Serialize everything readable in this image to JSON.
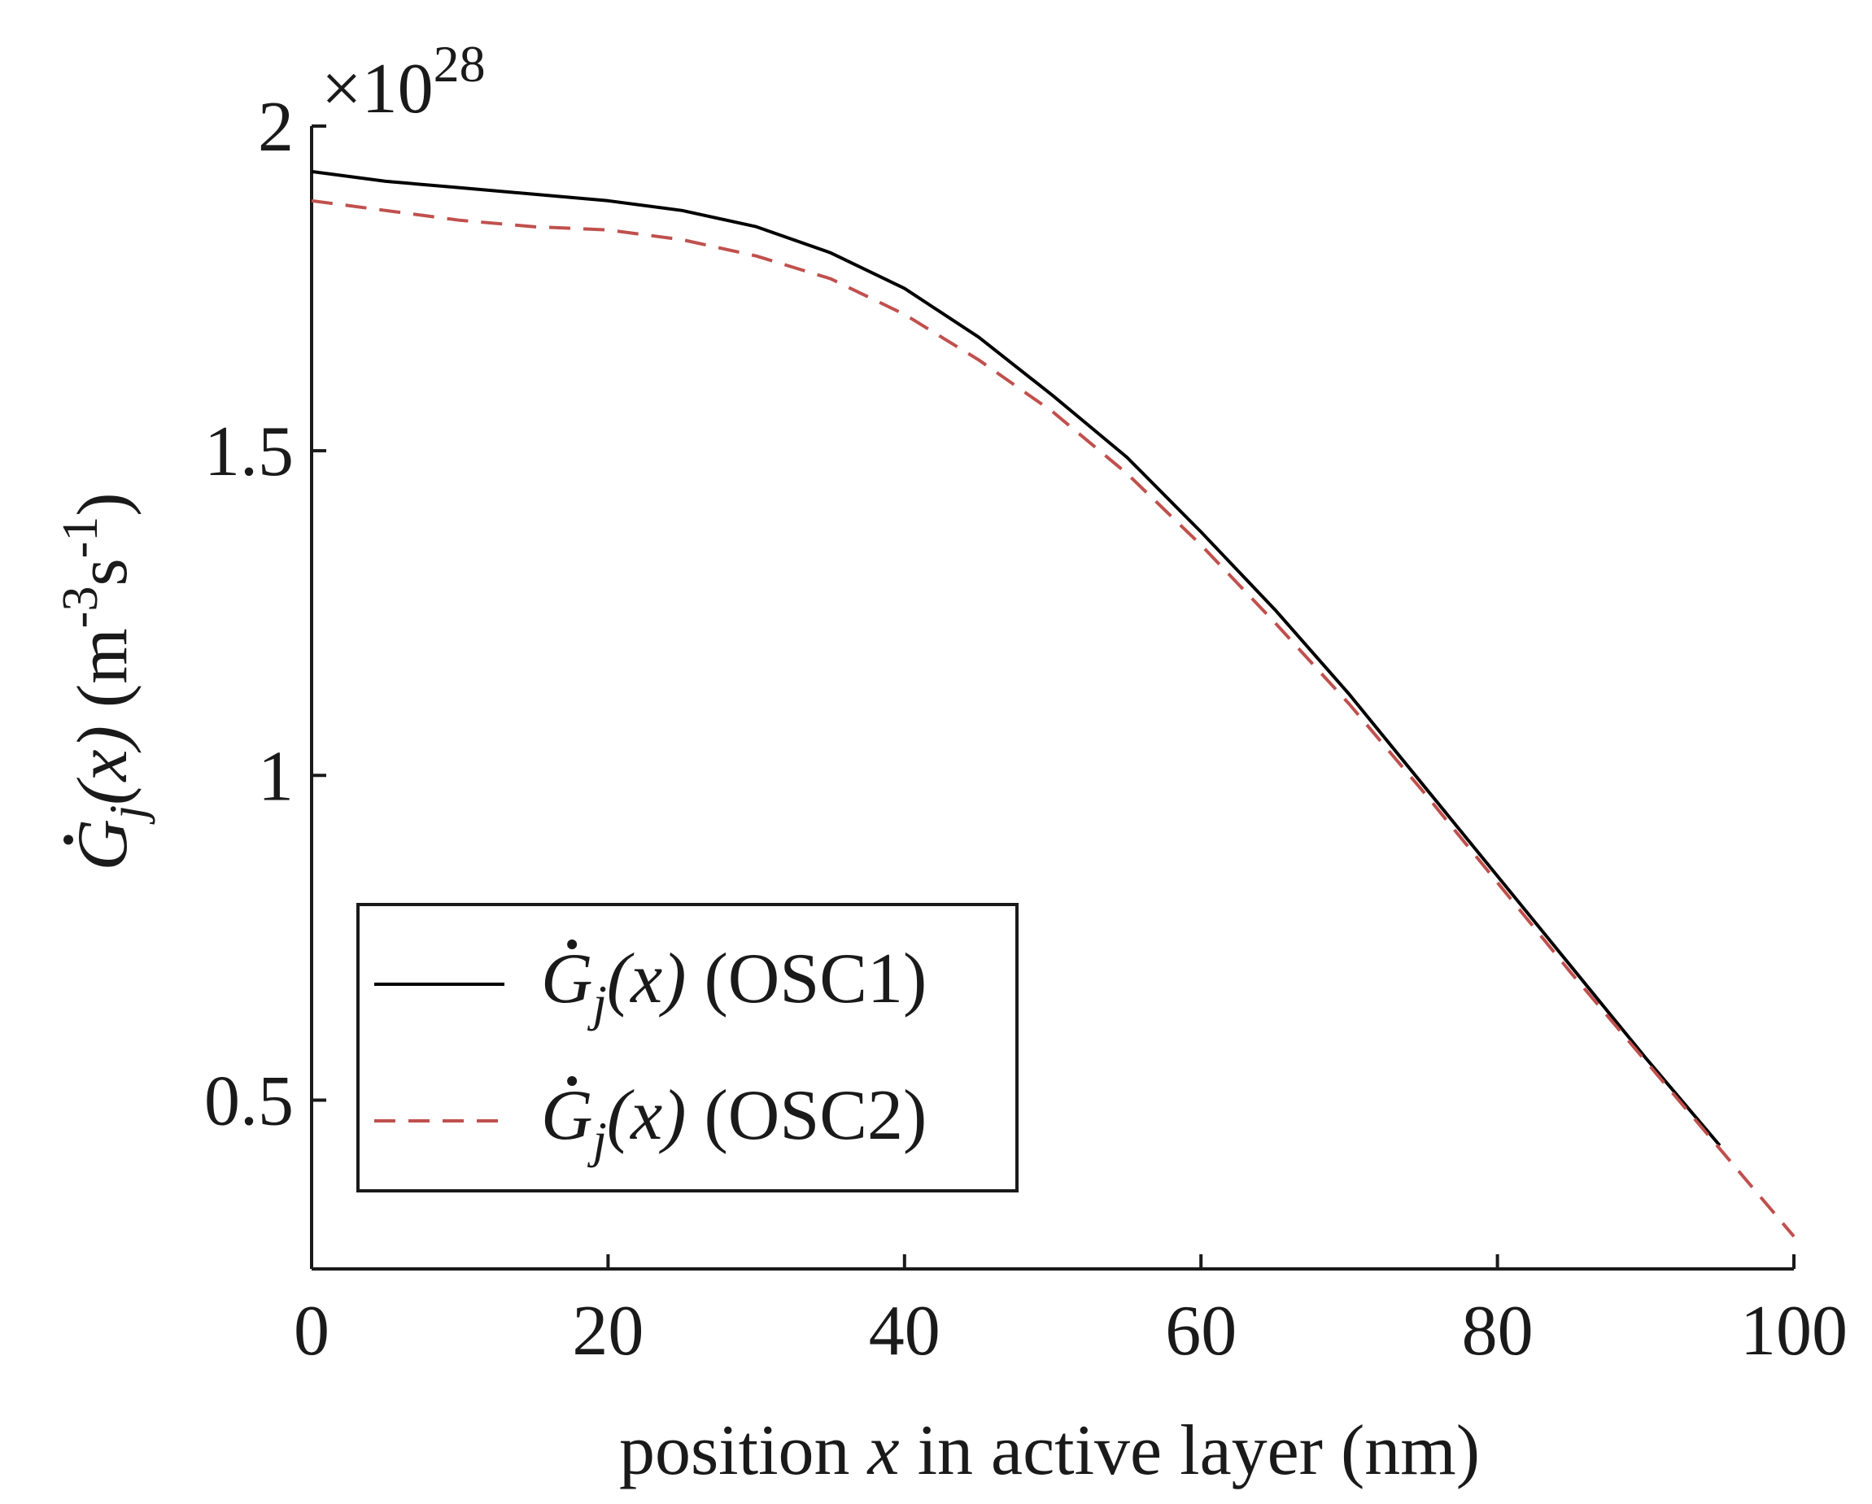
{
  "chart_data": {
    "type": "line",
    "title": "",
    "xlabel": {
      "part1": "position ",
      "part2": "x",
      "part3": " in active layer (nm)"
    },
    "ylabel": {
      "G": "G",
      "sub": "j",
      "arg": "(x)",
      "units_m": " (m",
      "units_exp1": "-3",
      "units_s": "s",
      "units_exp2": "-1",
      "units_close": ")"
    },
    "y_multiplier": {
      "prefix": "×10",
      "exponent": "28"
    },
    "xlim": [
      0,
      100
    ],
    "ylim": [
      0.24,
      2.0
    ],
    "x_ticks": [
      0,
      20,
      40,
      60,
      80,
      100
    ],
    "x_tick_labels": [
      "0",
      "20",
      "40",
      "60",
      "80",
      "100"
    ],
    "y_ticks": [
      0.5,
      1.0,
      1.5,
      2.0
    ],
    "y_tick_labels": [
      "0.5",
      "1",
      "1.5",
      "2"
    ],
    "grid": false,
    "legend_position": "bottom-left",
    "series": [
      {
        "name": "OSC1",
        "legend": {
          "G": "G",
          "sub": "j",
          "arg": "(x)",
          "tail": " (OSC1)"
        },
        "color": "#000000",
        "style": "solid",
        "x": [
          0,
          5,
          10,
          15,
          20,
          25,
          30,
          35,
          40,
          45,
          50,
          55,
          60,
          65,
          70,
          75,
          80,
          85,
          90,
          95
        ],
        "y": [
          1.93,
          1.915,
          1.905,
          1.895,
          1.885,
          1.87,
          1.845,
          1.805,
          1.75,
          1.675,
          1.585,
          1.49,
          1.375,
          1.255,
          1.125,
          0.985,
          0.845,
          0.705,
          0.565,
          0.43
        ]
      },
      {
        "name": "OSC2",
        "legend": {
          "G": "G",
          "sub": "j",
          "arg": "(x)",
          "tail": " (OSC2)"
        },
        "color": "#c0504d",
        "style": "dashed",
        "x": [
          0,
          5,
          10,
          15,
          20,
          25,
          30,
          35,
          40,
          45,
          50,
          55,
          60,
          65,
          70,
          75,
          80,
          85,
          90,
          95,
          100
        ],
        "y": [
          1.885,
          1.87,
          1.855,
          1.845,
          1.84,
          1.825,
          1.8,
          1.765,
          1.71,
          1.64,
          1.56,
          1.465,
          1.355,
          1.235,
          1.11,
          0.975,
          0.835,
          0.695,
          0.56,
          0.425,
          0.29
        ]
      }
    ]
  }
}
